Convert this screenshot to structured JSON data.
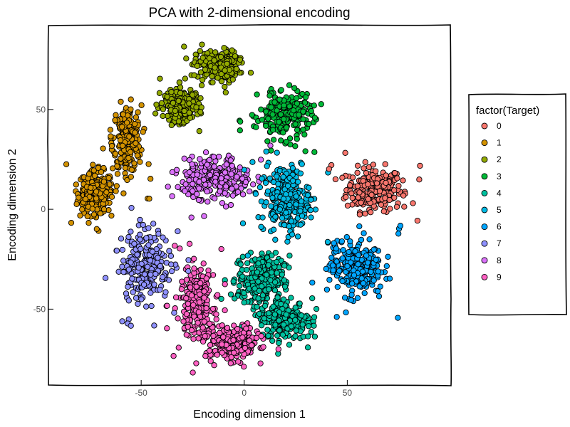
{
  "chart_data": {
    "type": "scatter",
    "title": "PCA with 2-dimensional encoding",
    "xlabel": "Encoding dimension 1",
    "ylabel": "Encoding dimension 2",
    "xlim": [
      -95,
      100
    ],
    "ylim": [
      -88,
      92
    ],
    "x_ticks": [
      -50,
      0,
      50
    ],
    "y_ticks": [
      50,
      0,
      -50
    ],
    "grid": false,
    "legend_position": "right",
    "legend_title": "factor(Target)",
    "series": [
      {
        "name": "0",
        "color": "#F8766D",
        "cluster": {
          "cx": 63,
          "cy": 10,
          "rx": 16,
          "ry": 13
        }
      },
      {
        "name": "1",
        "color": "#D39200",
        "cluster": {
          "cx": -72,
          "cy": 8,
          "rx": 10,
          "ry": 13,
          "cx2": -57,
          "cy2": 35,
          "rx2": 8,
          "ry2": 20
        }
      },
      {
        "name": "2",
        "color": "#93AA00",
        "cluster": {
          "cx": -13,
          "cy": 72,
          "rx": 12,
          "ry": 9,
          "cx2": -30,
          "cy2": 52,
          "rx2": 10,
          "ry2": 9
        }
      },
      {
        "name": "3",
        "color": "#00BA38",
        "cluster": {
          "cx": 20,
          "cy": 47,
          "rx": 15,
          "ry": 14
        }
      },
      {
        "name": "4",
        "color": "#00C19F",
        "cluster": {
          "cx": 8,
          "cy": -35,
          "rx": 13,
          "ry": 15,
          "cx2": 20,
          "cy2": -55,
          "rx2": 15,
          "ry2": 12
        }
      },
      {
        "name": "5",
        "color": "#00B9E3",
        "cluster": {
          "cx": 20,
          "cy": 5,
          "rx": 14,
          "ry": 20
        }
      },
      {
        "name": "6",
        "color": "#00A5FF",
        "cluster": {
          "cx": 54,
          "cy": -29,
          "rx": 15,
          "ry": 17
        }
      },
      {
        "name": "7",
        "color": "#8F91FF",
        "cluster": {
          "cx": -48,
          "cy": -27,
          "rx": 14,
          "ry": 21
        }
      },
      {
        "name": "8",
        "color": "#DB72FB",
        "cluster": {
          "cx": -13,
          "cy": 15,
          "rx": 20,
          "ry": 13
        }
      },
      {
        "name": "9",
        "color": "#FF61C3",
        "cluster": {
          "cx": -23,
          "cy": -47,
          "rx": 10,
          "ry": 20,
          "cx2": -5,
          "cy2": -67,
          "rx2": 15,
          "ry2": 10
        }
      }
    ]
  }
}
